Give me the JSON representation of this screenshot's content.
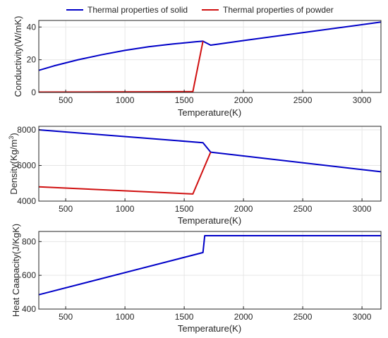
{
  "legend": {
    "position": "top-center",
    "entries": [
      {
        "label": "Thermal properties of solid",
        "color": "#0000c8"
      },
      {
        "label": "Thermal properties of powder",
        "color": "#d01010"
      }
    ]
  },
  "chart_data": [
    {
      "type": "line",
      "xlabel": "Temperature(K)",
      "ylabel": "Conductivity(W/mK)",
      "xlim": [
        273,
        3160
      ],
      "ylim": [
        0,
        44
      ],
      "xticks": [
        500,
        1000,
        1500,
        2000,
        2500,
        3000
      ],
      "yticks": [
        0,
        20,
        40
      ],
      "grid": true,
      "series": [
        {
          "name": "Thermal properties of solid",
          "color": "#0000c8",
          "x": [
            273,
            400,
            600,
            800,
            1000,
            1200,
            1400,
            1600,
            1658,
            1723,
            2000,
            2500,
            3160
          ],
          "y": [
            13.5,
            16.2,
            19.9,
            23.0,
            25.7,
            27.9,
            29.6,
            31.0,
            31.3,
            28.9,
            31.7,
            36.6,
            43.0
          ]
        },
        {
          "name": "Thermal properties of powder",
          "color": "#d01010",
          "x": [
            273,
            800,
            1200,
            1573,
            1658
          ],
          "y": [
            0.2,
            0.3,
            0.4,
            0.5,
            31.3
          ]
        }
      ]
    },
    {
      "type": "line",
      "xlabel": "Temperature(K)",
      "ylabel_main": "Density(Kg/m",
      "ylabel_sup": "3",
      "ylabel_end": ")",
      "xlim": [
        273,
        3160
      ],
      "ylim": [
        4000,
        8200
      ],
      "xticks": [
        500,
        1000,
        1500,
        2000,
        2500,
        3000
      ],
      "yticks": [
        4000,
        6000,
        8000
      ],
      "grid": true,
      "series": [
        {
          "name": "Thermal properties of solid",
          "color": "#0000c8",
          "x": [
            273,
            1658,
            1723,
            3160
          ],
          "y": [
            8000,
            7280,
            6750,
            5650
          ]
        },
        {
          "name": "Thermal properties of powder",
          "color": "#d01010",
          "x": [
            273,
            1573,
            1723
          ],
          "y": [
            4800,
            4400,
            6750
          ]
        }
      ]
    },
    {
      "type": "line",
      "xlabel": "Temperature(K)",
      "ylabel": "Heat Caapacity(J/KgK)",
      "xlim": [
        273,
        3160
      ],
      "ylim": [
        400,
        860
      ],
      "xticks": [
        500,
        1000,
        1500,
        2000,
        2500,
        3000
      ],
      "yticks": [
        400,
        600,
        800
      ],
      "grid": true,
      "series": [
        {
          "name": "Thermal properties of solid",
          "color": "#0000c8",
          "x": [
            273,
            1658,
            1673,
            3160
          ],
          "y": [
            485,
            735,
            835,
            835
          ]
        }
      ]
    }
  ]
}
